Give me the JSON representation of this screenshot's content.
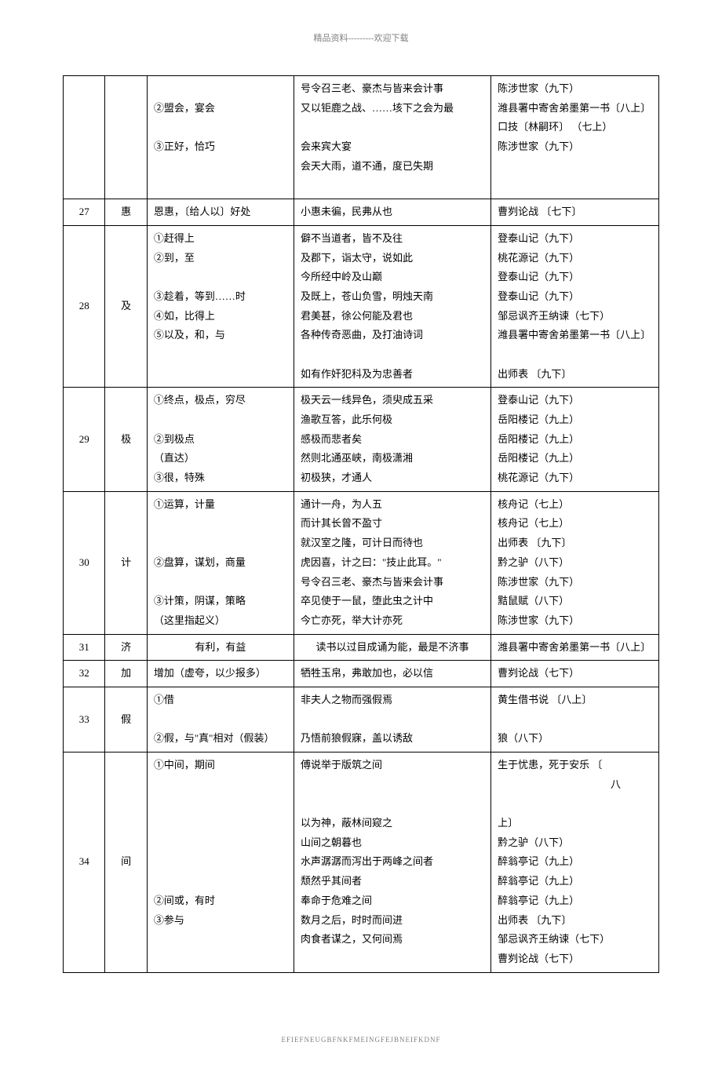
{
  "header_note": "精品资料---------欢迎下载",
  "footer_code": "EFIEFNEUGBFNKFMEINGFEJBNEIFKDNF",
  "rows": [
    {
      "num": "",
      "char": "",
      "defs": [
        "",
        "②盟会，宴会",
        "",
        "③正好，恰巧",
        "",
        ""
      ],
      "exs": [
        "号令召三老、豪杰与皆来会计事",
        "又以钜鹿之战、……垓下之会为最",
        "",
        "会来宾大宴",
        "会天大雨，道不通，度已失期",
        ""
      ],
      "srcs": [
        "陈涉世家（九下）",
        "潍县署中寄舍弟墨第一书〔八上〕",
        "口技〔林嗣环〕 （七上）",
        "陈涉世家（九下）",
        "",
        ""
      ]
    },
    {
      "num": "27",
      "char": "惠",
      "defs": [
        "恩惠，〔给人以〕好处"
      ],
      "exs": [
        "小惠未徧，民弗从也"
      ],
      "srcs": [
        "曹刿论战 〔七下〕"
      ]
    },
    {
      "num": "28",
      "char": "及",
      "defs": [
        "①赶得上",
        "②到，至",
        "",
        "③趁着，等到……时",
        "④如，比得上",
        "⑤以及，和，与",
        "",
        ""
      ],
      "exs": [
        "僻不当道者，皆不及往",
        "及郡下，诣太守，说如此",
        "今所经中岭及山巅",
        "及既上，苍山负雪，明烛天南",
        "君美甚，徐公何能及君也",
        "各种传奇恶曲，及打油诗词",
        "",
        "如有作奸犯科及为忠善者"
      ],
      "srcs": [
        "登泰山记（九下）",
        "桃花源记（九下）",
        "登泰山记（九下）",
        "登泰山记（九下）",
        "邹忌讽齐王纳谏（七下）",
        "潍县署中寄舍弟墨第一书〔八上〕",
        "",
        "出师表 〔九下〕"
      ]
    },
    {
      "num": "29",
      "char": "极",
      "defs": [
        "①终点，极点，穷尽",
        "",
        "②到极点",
        "（直达）",
        "③很，特殊"
      ],
      "exs": [
        "极天云一线异色，须臾成五采",
        "渔歌互答，此乐何极",
        "感极而悲者矣",
        "然则北通巫峡，南极潇湘",
        "初极狭，才通人"
      ],
      "srcs": [
        "登泰山记（九下）",
        "岳阳楼记（九上）",
        "岳阳楼记（九上）",
        "岳阳楼记（九上）",
        "桃花源记（九下）"
      ]
    },
    {
      "num": "30",
      "char": "计",
      "defs": [
        "①运算，计量",
        "",
        "",
        "②盘算，谋划，商量",
        "",
        "③计策，阴谋，策略",
        "（这里指起义）"
      ],
      "exs": [
        "通计一舟，为人五",
        "而计其长曾不盈寸",
        "就汉室之隆，可计日而待也",
        "虎因喜，计之曰：\"技止此耳。\"",
        "号令召三老、豪杰与皆来会计事",
        "卒见使于一鼠，堕此虫之计中",
        "今亡亦死，举大计亦死"
      ],
      "srcs": [
        "核舟记（七上）",
        "核舟记（七上）",
        "出师表 〔九下〕",
        "黔之驴（八下）",
        "陈涉世家（九下）",
        "黠鼠赋（八下）",
        "陈涉世家（九下）"
      ]
    },
    {
      "num": "31",
      "char": "济",
      "defs_center": "有利，有益",
      "exs_center": "读书以过目成诵为能，最是不济事",
      "srcs": [
        "潍县署中寄舍弟墨第一书〔八上〕"
      ]
    },
    {
      "num": "32",
      "char": "加",
      "defs": [
        "增加（虚夸，以少报多）"
      ],
      "exs": [
        "牺牲玉帛，弗敢加也，必以信"
      ],
      "srcs": [
        "曹刿论战（七下）"
      ]
    },
    {
      "num": "33",
      "char": "假",
      "defs": [
        "①借",
        "",
        "②假，与\"真\"相对（假装）"
      ],
      "exs": [
        "非夫人之物而强假焉",
        "",
        "乃悟前狼假寐，盖以诱敌"
      ],
      "srcs": [
        "黄生借书说 〔八上〕",
        "",
        "狼（八下）"
      ]
    },
    {
      "num": "34",
      "char": "间",
      "defs": [
        "①中间，期间",
        "",
        "",
        "",
        "",
        "",
        "",
        "②间或，有时",
        "③参与"
      ],
      "exs": [
        "傅说举于版筑之间",
        "",
        "",
        "以为神，蔽林间窥之",
        "山间之朝暮也",
        "水声潺潺而泻出于两峰之间者",
        "颓然乎其间者",
        "奉命于危难之间",
        "数月之后，时时而间进",
        "肉食者谋之，又何间焉"
      ],
      "srcs": [
        "生于忧患，死于安乐    〔",
        "八",
        "上〕",
        "黔之驴（八下）",
        "醉翁亭记（九上）",
        "醉翁亭记（九上）",
        "醉翁亭记（九上）",
        "出师表 〔九下〕",
        "邹忌讽齐王纳谏（七下）",
        "曹刿论战（七下）"
      ]
    }
  ]
}
